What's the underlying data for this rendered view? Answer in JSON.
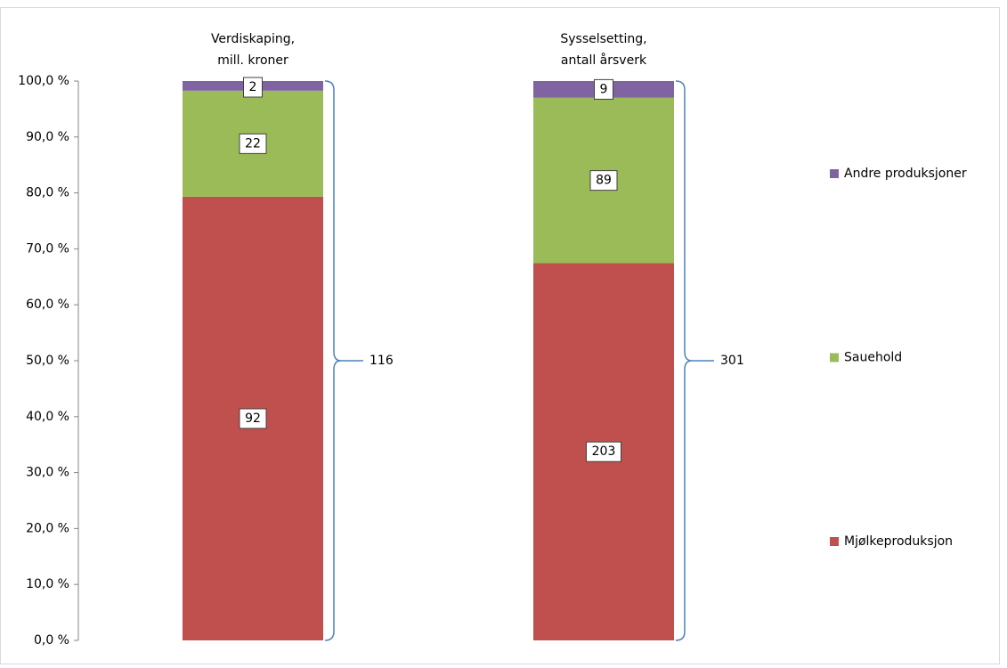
{
  "chart_data": {
    "type": "bar",
    "stacking": "percent",
    "categories": [
      [
        "Verdiskaping,",
        "mill. kroner"
      ],
      [
        "Sysselsetting,",
        "antall årsverk"
      ]
    ],
    "series": [
      {
        "name": "Mjølkeproduksjon",
        "color": "#c0504d",
        "values": [
          92,
          203
        ]
      },
      {
        "name": "Sauehold",
        "color": "#9bbb59",
        "values": [
          22,
          89
        ]
      },
      {
        "name": "Andre produksjoner",
        "color": "#8064a2",
        "values": [
          2,
          9
        ]
      }
    ],
    "totals": [
      116,
      301
    ],
    "ylim": [
      0,
      100
    ],
    "yticks": [
      {
        "value": 0,
        "label": "0,0 %"
      },
      {
        "value": 10,
        "label": "10,0 %"
      },
      {
        "value": 20,
        "label": "20,0 %"
      },
      {
        "value": 30,
        "label": "30,0 %"
      },
      {
        "value": 40,
        "label": "40,0 %"
      },
      {
        "value": 50,
        "label": "50,0 %"
      },
      {
        "value": 60,
        "label": "60,0 %"
      },
      {
        "value": 70,
        "label": "70,0 %"
      },
      {
        "value": 80,
        "label": "80,0 %"
      },
      {
        "value": 90,
        "label": "90,0 %"
      },
      {
        "value": 100,
        "label": "100,0 %"
      }
    ],
    "legend": "right"
  }
}
